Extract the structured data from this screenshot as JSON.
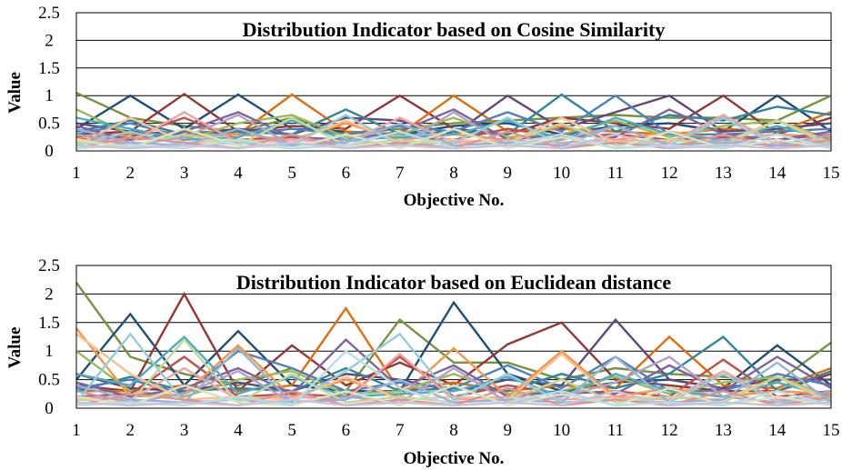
{
  "chart_data": [
    {
      "type": "line",
      "title": "Distribution Indicator based on Cosine Similarity",
      "xlabel": "Objective No.",
      "ylabel": "Value",
      "ylim": [
        0,
        2.5
      ],
      "yticks": [
        "0",
        "0.5",
        "1",
        "1.5",
        "2",
        "2.5"
      ],
      "categories": [
        "1",
        "2",
        "3",
        "4",
        "5",
        "6",
        "7",
        "8",
        "9",
        "10",
        "11",
        "12",
        "13",
        "14",
        "15"
      ],
      "grid": true,
      "legend": "none",
      "series": [
        {
          "color": "#77933c",
          "values": [
            1.05,
            0.6,
            0.45,
            0.35,
            0.6,
            0.3,
            0.4,
            0.5,
            0.55,
            0.6,
            0.65,
            0.6,
            0.6,
            0.55,
            1.0
          ]
        },
        {
          "color": "#1f4e79",
          "values": [
            0.4,
            1.0,
            0.4,
            1.02,
            0.4,
            0.35,
            0.3,
            0.45,
            0.5,
            0.3,
            0.45,
            0.5,
            0.35,
            1.0,
            0.35
          ]
        },
        {
          "color": "#953735",
          "values": [
            0.3,
            0.35,
            1.03,
            0.35,
            0.45,
            0.4,
            1.0,
            0.4,
            0.3,
            0.6,
            0.5,
            0.4,
            1.0,
            0.3,
            0.6
          ]
        },
        {
          "color": "#e46c0a",
          "values": [
            0.25,
            0.3,
            0.35,
            0.3,
            1.02,
            0.35,
            0.3,
            1.0,
            0.35,
            0.4,
            0.35,
            0.3,
            0.4,
            0.35,
            0.7
          ]
        },
        {
          "color": "#60497a",
          "values": [
            0.5,
            0.35,
            0.3,
            0.4,
            0.3,
            0.6,
            0.55,
            0.3,
            1.0,
            0.4,
            0.7,
            1.0,
            0.35,
            0.4,
            0.5
          ]
        },
        {
          "color": "#31859c",
          "values": [
            0.35,
            0.55,
            0.3,
            0.35,
            0.3,
            0.75,
            0.3,
            0.35,
            0.3,
            1.02,
            0.35,
            0.65,
            0.55,
            0.8,
            0.65
          ]
        },
        {
          "color": "#4f81bd",
          "values": [
            0.3,
            0.5,
            0.25,
            0.3,
            0.4,
            0.3,
            0.45,
            0.35,
            0.7,
            0.35,
            1.0,
            0.3,
            0.3,
            0.35,
            0.4
          ]
        },
        {
          "color": "#9bbb59",
          "values": [
            0.75,
            0.3,
            0.2,
            0.5,
            0.65,
            0.25,
            0.3,
            0.6,
            0.25,
            0.3,
            0.55,
            0.25,
            0.45,
            0.55,
            0.2
          ]
        },
        {
          "color": "#c0504d",
          "values": [
            0.2,
            0.25,
            0.6,
            0.2,
            0.25,
            0.2,
            0.25,
            0.2,
            0.4,
            0.25,
            0.3,
            0.2,
            0.25,
            0.2,
            0.3
          ]
        },
        {
          "color": "#f79646",
          "values": [
            0.15,
            0.2,
            0.25,
            0.3,
            0.2,
            0.5,
            0.2,
            0.3,
            0.2,
            0.45,
            0.2,
            0.35,
            0.2,
            0.3,
            0.25
          ]
        },
        {
          "color": "#8064a2",
          "values": [
            0.45,
            0.2,
            0.35,
            0.7,
            0.25,
            0.2,
            0.35,
            0.75,
            0.2,
            0.3,
            0.25,
            0.75,
            0.3,
            0.2,
            0.35
          ]
        },
        {
          "color": "#4bacc6",
          "values": [
            0.6,
            0.4,
            0.2,
            0.25,
            0.55,
            0.2,
            0.25,
            0.3,
            0.55,
            0.2,
            0.6,
            0.3,
            0.2,
            0.45,
            0.2
          ]
        },
        {
          "color": "#f2a3a3",
          "values": [
            0.2,
            0.15,
            0.7,
            0.15,
            0.2,
            0.15,
            0.6,
            0.15,
            0.2,
            0.15,
            0.2,
            0.15,
            0.65,
            0.15,
            0.2
          ]
        },
        {
          "color": "#fac090",
          "values": [
            0.1,
            0.6,
            0.15,
            0.2,
            0.15,
            0.55,
            0.15,
            0.2,
            0.15,
            0.6,
            0.15,
            0.2,
            0.15,
            0.55,
            0.15
          ]
        },
        {
          "color": "#b3a2c7",
          "values": [
            0.3,
            0.1,
            0.25,
            0.65,
            0.1,
            0.2,
            0.1,
            0.7,
            0.1,
            0.2,
            0.45,
            0.1,
            0.2,
            0.1,
            0.3
          ]
        },
        {
          "color": "#93cddd",
          "values": [
            0.1,
            0.35,
            0.1,
            0.15,
            0.1,
            0.65,
            0.1,
            0.15,
            0.6,
            0.1,
            0.15,
            0.1,
            0.6,
            0.1,
            0.15
          ]
        },
        {
          "color": "#c3d69b",
          "values": [
            0.15,
            0.1,
            0.3,
            0.1,
            0.6,
            0.1,
            0.2,
            0.1,
            0.15,
            0.5,
            0.1,
            0.2,
            0.1,
            0.55,
            0.1
          ]
        },
        {
          "color": "#95b3d7",
          "values": [
            0.4,
            0.15,
            0.1,
            0.4,
            0.1,
            0.15,
            0.5,
            0.1,
            0.15,
            0.1,
            0.45,
            0.1,
            0.15,
            0.1,
            0.1
          ]
        },
        {
          "color": "#d99694",
          "values": [
            0.05,
            0.25,
            0.15,
            0.05,
            0.3,
            0.05,
            0.15,
            0.05,
            0.35,
            0.05,
            0.15,
            0.05,
            0.3,
            0.05,
            0.2
          ]
        },
        {
          "color": "#d7e4bd",
          "values": [
            0.2,
            0.05,
            0.4,
            0.1,
            0.05,
            0.3,
            0.05,
            0.4,
            0.05,
            0.25,
            0.05,
            0.35,
            0.05,
            0.2,
            0.05
          ]
        },
        {
          "color": "#b7dee8",
          "values": [
            0.05,
            0.1,
            0.05,
            0.2,
            0.05,
            0.1,
            0.35,
            0.05,
            0.1,
            0.3,
            0.05,
            0.1,
            0.05,
            0.3,
            0.05
          ]
        },
        {
          "color": "#ccc1da",
          "values": [
            0.1,
            0.05,
            0.1,
            0.05,
            0.15,
            0.05,
            0.1,
            0.05,
            0.1,
            0.05,
            0.3,
            0.05,
            0.1,
            0.05,
            0.1
          ]
        }
      ]
    },
    {
      "type": "line",
      "title": "Distribution Indicator based on Euclidean distance",
      "xlabel": "Objective No.",
      "ylabel": "Value",
      "ylim": [
        0,
        2.5
      ],
      "yticks": [
        "0",
        "0.5",
        "1",
        "1.5",
        "2",
        "2.5"
      ],
      "categories": [
        "1",
        "2",
        "3",
        "4",
        "5",
        "6",
        "7",
        "8",
        "9",
        "10",
        "11",
        "12",
        "13",
        "14",
        "15"
      ],
      "grid": true,
      "legend": "none",
      "series": [
        {
          "color": "#77933c",
          "values": [
            2.2,
            0.9,
            0.6,
            0.4,
            0.7,
            0.3,
            1.55,
            0.8,
            0.8,
            0.5,
            0.7,
            0.6,
            0.55,
            0.45,
            1.15
          ]
        },
        {
          "color": "#1f4e79",
          "values": [
            0.5,
            1.65,
            0.4,
            1.35,
            0.4,
            0.3,
            0.3,
            1.85,
            0.6,
            0.3,
            0.45,
            0.5,
            0.35,
            1.1,
            0.4
          ]
        },
        {
          "color": "#953735",
          "values": [
            0.4,
            0.3,
            2.0,
            0.3,
            1.1,
            0.4,
            0.8,
            0.4,
            1.12,
            1.5,
            0.5,
            0.4,
            0.3,
            0.3,
            0.6
          ]
        },
        {
          "color": "#e46c0a",
          "values": [
            0.3,
            0.3,
            0.4,
            0.3,
            0.4,
            1.75,
            0.3,
            0.45,
            0.3,
            0.4,
            0.35,
            1.25,
            0.4,
            0.35,
            0.7
          ]
        },
        {
          "color": "#60497a",
          "values": [
            0.6,
            0.35,
            0.3,
            0.45,
            0.3,
            0.6,
            0.5,
            0.3,
            0.5,
            0.4,
            1.55,
            0.5,
            0.35,
            0.5,
            0.5
          ]
        },
        {
          "color": "#31859c",
          "values": [
            0.3,
            0.55,
            0.3,
            0.35,
            0.3,
            0.7,
            0.3,
            0.35,
            0.3,
            0.6,
            0.35,
            0.6,
            1.25,
            0.3,
            0.65
          ]
        },
        {
          "color": "#4f81bd",
          "values": [
            0.35,
            0.5,
            0.25,
            1.0,
            0.7,
            0.3,
            0.45,
            0.35,
            0.75,
            0.35,
            0.9,
            0.3,
            0.3,
            0.6,
            0.4
          ]
        },
        {
          "color": "#9bbb59",
          "values": [
            1.0,
            0.3,
            0.2,
            0.5,
            0.65,
            0.25,
            0.3,
            0.6,
            0.25,
            0.3,
            0.55,
            0.25,
            0.45,
            0.55,
            0.2
          ]
        },
        {
          "color": "#c0504d",
          "values": [
            0.2,
            0.25,
            0.9,
            0.2,
            0.25,
            0.2,
            0.9,
            0.2,
            0.4,
            0.25,
            0.3,
            0.2,
            0.85,
            0.2,
            0.3
          ]
        },
        {
          "color": "#f79646",
          "values": [
            1.4,
            0.2,
            0.25,
            1.1,
            0.2,
            0.5,
            0.2,
            1.05,
            0.2,
            1.0,
            0.2,
            0.35,
            0.2,
            0.3,
            0.25
          ]
        },
        {
          "color": "#8064a2",
          "values": [
            0.45,
            0.2,
            0.35,
            0.7,
            0.25,
            1.2,
            0.35,
            0.75,
            0.2,
            0.3,
            0.25,
            0.75,
            0.3,
            0.9,
            0.35
          ]
        },
        {
          "color": "#4bacc6",
          "values": [
            0.6,
            0.4,
            1.25,
            0.25,
            0.55,
            0.2,
            0.25,
            0.3,
            0.55,
            0.2,
            0.6,
            0.3,
            0.2,
            0.45,
            0.2
          ]
        },
        {
          "color": "#f2a3a3",
          "values": [
            0.2,
            0.15,
            0.7,
            0.15,
            0.2,
            0.15,
            0.95,
            0.15,
            0.2,
            0.15,
            0.2,
            0.15,
            0.65,
            0.15,
            0.2
          ]
        },
        {
          "color": "#fac090",
          "values": [
            1.3,
            0.6,
            0.15,
            0.2,
            0.15,
            0.55,
            0.15,
            0.2,
            0.15,
            0.95,
            0.15,
            0.2,
            0.15,
            0.55,
            0.15
          ]
        },
        {
          "color": "#b3a2c7",
          "values": [
            0.3,
            0.1,
            0.25,
            0.65,
            0.1,
            0.2,
            0.1,
            0.7,
            0.1,
            0.2,
            0.45,
            0.9,
            0.2,
            0.1,
            0.3
          ]
        },
        {
          "color": "#93cddd",
          "values": [
            0.1,
            1.3,
            0.1,
            0.15,
            0.1,
            0.65,
            1.3,
            0.15,
            0.6,
            0.1,
            0.15,
            0.1,
            0.6,
            0.1,
            0.15
          ]
        },
        {
          "color": "#c3d69b",
          "values": [
            0.15,
            0.1,
            1.2,
            0.1,
            0.6,
            0.1,
            0.2,
            0.1,
            0.15,
            0.5,
            0.1,
            0.2,
            0.1,
            0.55,
            0.1
          ]
        },
        {
          "color": "#95b3d7",
          "values": [
            0.4,
            0.15,
            0.1,
            1.05,
            0.1,
            0.15,
            0.5,
            0.1,
            0.15,
            0.1,
            0.9,
            0.1,
            0.15,
            0.8,
            0.1
          ]
        },
        {
          "color": "#d99694",
          "values": [
            0.05,
            0.25,
            0.15,
            0.05,
            0.3,
            0.05,
            0.15,
            0.05,
            0.35,
            0.05,
            0.15,
            0.05,
            0.3,
            0.05,
            0.2
          ]
        },
        {
          "color": "#d7e4bd",
          "values": [
            0.2,
            0.05,
            0.4,
            0.1,
            0.05,
            0.3,
            0.05,
            0.4,
            0.05,
            0.25,
            0.05,
            0.35,
            0.05,
            0.2,
            0.05
          ]
        },
        {
          "color": "#b7dee8",
          "values": [
            0.05,
            0.1,
            0.05,
            0.2,
            0.05,
            1.0,
            0.35,
            0.05,
            0.1,
            0.3,
            0.05,
            0.1,
            0.05,
            0.3,
            0.05
          ]
        },
        {
          "color": "#ccc1da",
          "values": [
            0.1,
            0.05,
            0.1,
            0.05,
            0.15,
            0.05,
            0.1,
            0.05,
            0.1,
            0.05,
            0.3,
            0.05,
            0.1,
            0.05,
            0.1
          ]
        }
      ]
    }
  ]
}
